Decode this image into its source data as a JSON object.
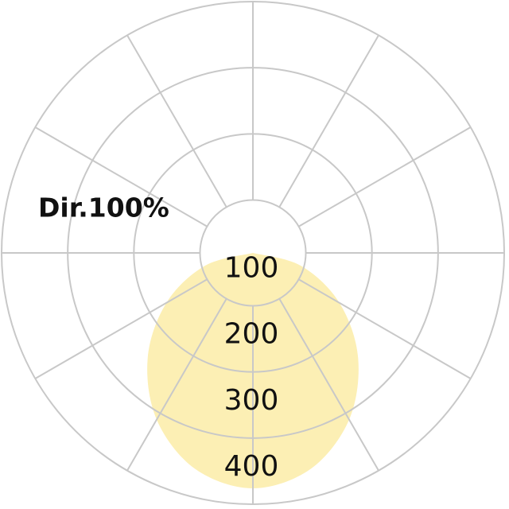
{
  "chart_data": {
    "type": "polar",
    "title": "Dir.100%",
    "angles": [
      -90,
      -75,
      -60,
      -45,
      -30,
      -15,
      0,
      15,
      30,
      45,
      60,
      75,
      90
    ],
    "values": [
      20,
      95,
      171,
      245,
      311,
      358,
      376,
      358,
      311,
      245,
      171,
      95,
      20
    ],
    "color": "#fcefb4",
    "rlim": [
      20,
      400
    ],
    "rticks": [
      100,
      200,
      300,
      400
    ],
    "grid": true,
    "grid_color": "#c8c8c8"
  }
}
